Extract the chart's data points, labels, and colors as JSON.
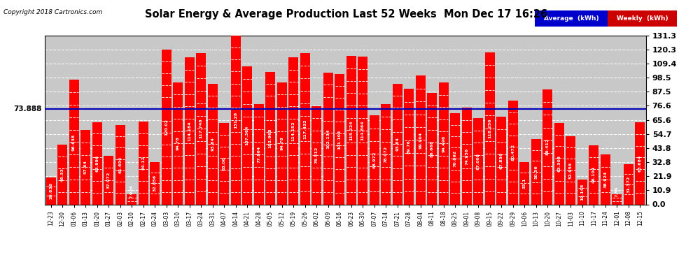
{
  "title": "Solar Energy & Average Production Last 52 Weeks  Mon Dec 17 16:26",
  "copyright": "Copyright 2018 Cartronics.com",
  "average_value": 73.888,
  "bar_color": "#ff0000",
  "average_line_color": "#0000bb",
  "plot_background": "#c8c8c8",
  "grid_color": "#ffffff",
  "ylim": [
    0.0,
    131.3
  ],
  "yticks": [
    0.0,
    10.9,
    21.9,
    32.8,
    43.8,
    54.7,
    65.6,
    76.6,
    87.5,
    98.5,
    109.4,
    120.3,
    131.3
  ],
  "categories": [
    "12-23",
    "12-30",
    "01-06",
    "01-13",
    "01-20",
    "01-27",
    "02-03",
    "02-10",
    "02-17",
    "02-24",
    "03-03",
    "03-10",
    "03-17",
    "03-24",
    "03-31",
    "04-07",
    "04-14",
    "04-21",
    "04-28",
    "05-05",
    "05-12",
    "05-19",
    "05-26",
    "06-02",
    "06-09",
    "06-16",
    "06-23",
    "06-30",
    "07-07",
    "07-14",
    "07-21",
    "07-28",
    "08-04",
    "08-11",
    "08-18",
    "08-25",
    "09-01",
    "09-08",
    "09-15",
    "09-22",
    "09-29",
    "10-06",
    "10-13",
    "10-20",
    "10-27",
    "11-03",
    "11-10",
    "11-17",
    "11-24",
    "12-01",
    "12-08",
    "12-15"
  ],
  "values": [
    20.838,
    46.33,
    96.638,
    57.64,
    63.996,
    37.972,
    61.694,
    7.926,
    64.12,
    32.856,
    120.02,
    94.78,
    114.184,
    117.748,
    93.84,
    63.06,
    131.28,
    107.364,
    77.864,
    102.968,
    94.78,
    114.152,
    117.432,
    76.512,
    102.134,
    101.104,
    115.224,
    114.864,
    68.972,
    78.072,
    93.84,
    89.76,
    99.904,
    86.668,
    94.496,
    70.692,
    74.956,
    67.008,
    118.256,
    67.856,
    80.472,
    33.1,
    50.56,
    89.412,
    63.308,
    52.956,
    19.148,
    46.104,
    38.924,
    7.84,
    31.372,
    63.684
  ],
  "legend_avg_bg": "#0000cc",
  "legend_weekly_bg": "#cc0000"
}
